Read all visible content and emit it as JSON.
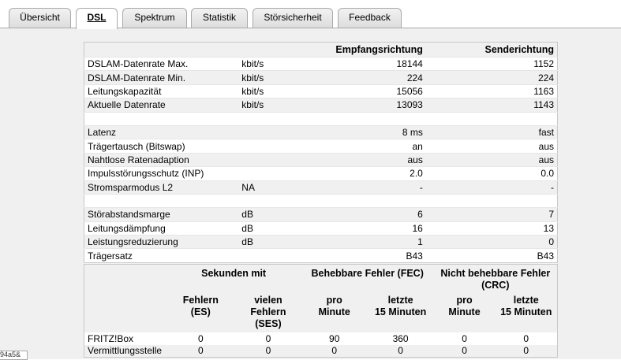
{
  "tabs": [
    {
      "label": "Übersicht"
    },
    {
      "label": "DSL"
    },
    {
      "label": "Spektrum"
    },
    {
      "label": "Statistik"
    },
    {
      "label": "Störsicherheit"
    },
    {
      "label": "Feedback"
    }
  ],
  "table1": {
    "headers": {
      "empfang": "Empfangsrichtung",
      "sende": "Senderichtung"
    },
    "rows": [
      {
        "label": "DSLAM-Datenrate Max.",
        "unit": "kbit/s",
        "empfang": "18144",
        "sende": "1152"
      },
      {
        "label": "DSLAM-Datenrate Min.",
        "unit": "kbit/s",
        "empfang": "224",
        "sende": "224"
      },
      {
        "label": "Leitungskapazität",
        "unit": "kbit/s",
        "empfang": "15056",
        "sende": "1163"
      },
      {
        "label": "Aktuelle Datenrate",
        "unit": "kbit/s",
        "empfang": "13093",
        "sende": "1143"
      },
      {
        "label": "",
        "unit": "",
        "empfang": "",
        "sende": ""
      },
      {
        "label": "Latenz",
        "unit": "",
        "empfang": "8 ms",
        "sende": "fast"
      },
      {
        "label": "Trägertausch (Bitswap)",
        "unit": "",
        "empfang": "an",
        "sende": "aus"
      },
      {
        "label": "Nahtlose Ratenadaption",
        "unit": "",
        "empfang": "aus",
        "sende": "aus"
      },
      {
        "label": "Impulsstörungsschutz (INP)",
        "unit": "",
        "empfang": "2.0",
        "sende": "0.0"
      },
      {
        "label": "Stromsparmodus L2",
        "unit": "NA",
        "empfang": "-",
        "sende": "-"
      },
      {
        "label": "",
        "unit": "",
        "empfang": "",
        "sende": ""
      },
      {
        "label": "Störabstandsmarge",
        "unit": "dB",
        "empfang": "6",
        "sende": "7"
      },
      {
        "label": "Leitungsdämpfung",
        "unit": "dB",
        "empfang": "16",
        "sende": "13"
      },
      {
        "label": "Leistungsreduzierung",
        "unit": "dB",
        "empfang": "1",
        "sende": "0"
      },
      {
        "label": "Trägersatz",
        "unit": "",
        "empfang": "B43",
        "sende": "B43"
      }
    ]
  },
  "table2": {
    "groups": {
      "sekunden": "Sekunden mit",
      "fec": "Behebbare Fehler (FEC)",
      "crc_line1": "Nicht behebbare Fehler",
      "crc_line2": "(CRC)"
    },
    "sub": {
      "es_1": "Fehlern",
      "es_2": "(ES)",
      "ses_1": "vielen",
      "ses_2": "Fehlern",
      "ses_3": "(SES)",
      "fec_min_1": "pro",
      "fec_min_2": "Minute",
      "fec_15_1": "letzte",
      "fec_15_2": "15 Minuten",
      "crc_min_1": "pro",
      "crc_min_2": "Minute",
      "crc_15_1": "letzte",
      "crc_15_2": "15 Minuten"
    },
    "rows": [
      {
        "label": "FRITZ!Box",
        "es": "0",
        "ses": "0",
        "fec_min": "90",
        "fec_15": "360",
        "crc_min": "0",
        "crc_15": "0"
      },
      {
        "label": "Vermittlungsstelle",
        "es": "0",
        "ses": "0",
        "fec_min": "0",
        "fec_15": "0",
        "crc_min": "0",
        "crc_15": "0"
      }
    ]
  },
  "overlay_text": "94a5&"
}
